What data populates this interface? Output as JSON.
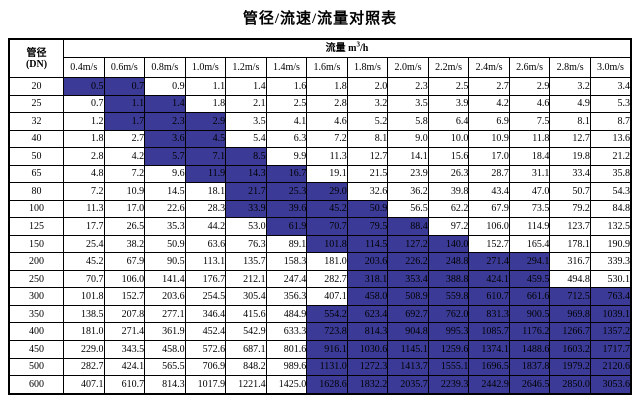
{
  "title": "管径/流速/流量对照表",
  "colors": {
    "highlight": "#3b3b97",
    "border": "#000000",
    "background": "#ffffff"
  },
  "table": {
    "corner_line1": "管径",
    "corner_line2": "(DN)",
    "flow_label": "流量 m",
    "flow_sup": "3",
    "flow_unit": "/h",
    "velocity_headers": [
      "0.4m/s",
      "0.6m/s",
      "0.8m/s",
      "1.0m/s",
      "1.2m/s",
      "1.4m/s",
      "1.6m/s",
      "1.8m/s",
      "2.0m/s",
      "2.2m/s",
      "2.4m/s",
      "2.6m/s",
      "2.8m/s",
      "3.0m/s"
    ],
    "rows": [
      {
        "dn": "20",
        "values": [
          "0.5",
          "0.7",
          "0.9",
          "1.1",
          "1.4",
          "1.6",
          "1.8",
          "2.0",
          "2.3",
          "2.5",
          "2.7",
          "2.9",
          "3.2",
          "3.4"
        ],
        "hl": [
          0,
          1
        ]
      },
      {
        "dn": "25",
        "values": [
          "0.7",
          "1.1",
          "1.4",
          "1.8",
          "2.1",
          "2.5",
          "2.8",
          "3.2",
          "3.5",
          "3.9",
          "4.2",
          "4.6",
          "4.9",
          "5.3"
        ],
        "hl": [
          1,
          2
        ]
      },
      {
        "dn": "32",
        "values": [
          "1.2",
          "1.7",
          "2.3",
          "2.9",
          "3.5",
          "4.1",
          "4.6",
          "5.2",
          "5.8",
          "6.4",
          "6.9",
          "7.5",
          "8.1",
          "8.7"
        ],
        "hl": [
          1,
          3
        ]
      },
      {
        "dn": "40",
        "values": [
          "1.8",
          "2.7",
          "3.6",
          "4.5",
          "5.4",
          "6.3",
          "7.2",
          "8.1",
          "9.0",
          "10.0",
          "10.9",
          "11.8",
          "12.7",
          "13.6"
        ],
        "hl": [
          2,
          3
        ]
      },
      {
        "dn": "50",
        "values": [
          "2.8",
          "4.2",
          "5.7",
          "7.1",
          "8.5",
          "9.9",
          "11.3",
          "12.7",
          "14.1",
          "15.6",
          "17.0",
          "18.4",
          "19.8",
          "21.2"
        ],
        "hl": [
          2,
          4
        ]
      },
      {
        "dn": "65",
        "values": [
          "4.8",
          "7.2",
          "9.6",
          "11.9",
          "14.3",
          "16.7",
          "19.1",
          "21.5",
          "23.9",
          "26.3",
          "28.7",
          "31.1",
          "33.4",
          "35.8"
        ],
        "hl": [
          3,
          5
        ]
      },
      {
        "dn": "80",
        "values": [
          "7.2",
          "10.9",
          "14.5",
          "18.1",
          "21.7",
          "25.3",
          "29.0",
          "32.6",
          "36.2",
          "39.8",
          "43.4",
          "47.0",
          "50.7",
          "54.3"
        ],
        "hl": [
          4,
          6
        ]
      },
      {
        "dn": "100",
        "values": [
          "11.3",
          "17.0",
          "22.6",
          "28.3",
          "33.9",
          "39.6",
          "45.2",
          "50.9",
          "56.5",
          "62.2",
          "67.9",
          "73.5",
          "79.2",
          "84.8"
        ],
        "hl": [
          4,
          7
        ]
      },
      {
        "dn": "125",
        "values": [
          "17.7",
          "26.5",
          "35.3",
          "44.2",
          "53.0",
          "61.9",
          "70.7",
          "79.5",
          "88.4",
          "97.2",
          "106.0",
          "114.9",
          "123.7",
          "132.5"
        ],
        "hl": [
          5,
          8
        ]
      },
      {
        "dn": "150",
        "values": [
          "25.4",
          "38.2",
          "50.9",
          "63.6",
          "76.3",
          "89.1",
          "101.8",
          "114.5",
          "127.2",
          "140.0",
          "152.7",
          "165.4",
          "178.1",
          "190.9"
        ],
        "hl": [
          6,
          9
        ]
      },
      {
        "dn": "200",
        "values": [
          "45.2",
          "67.9",
          "90.5",
          "113.1",
          "135.7",
          "158.3",
          "181.0",
          "203.6",
          "226.2",
          "248.8",
          "271.4",
          "294.1",
          "316.7",
          "339.3"
        ],
        "hl": [
          7,
          11
        ]
      },
      {
        "dn": "250",
        "values": [
          "70.7",
          "106.0",
          "141.4",
          "176.7",
          "212.1",
          "247.4",
          "282.7",
          "318.1",
          "353.4",
          "388.8",
          "424.1",
          "459.5",
          "494.8",
          "530.1"
        ],
        "hl": [
          7,
          11
        ]
      },
      {
        "dn": "300",
        "values": [
          "101.8",
          "152.7",
          "203.6",
          "254.5",
          "305.4",
          "356.3",
          "407.1",
          "458.0",
          "508.9",
          "559.8",
          "610.7",
          "661.6",
          "712.5",
          "763.4"
        ],
        "hl": [
          7,
          13
        ]
      },
      {
        "dn": "350",
        "values": [
          "138.5",
          "207.8",
          "277.1",
          "346.4",
          "415.6",
          "484.9",
          "554.2",
          "623.4",
          "692.7",
          "762.0",
          "831.3",
          "900.5",
          "969.8",
          "1039.1"
        ],
        "hl": [
          6,
          13
        ]
      },
      {
        "dn": "400",
        "values": [
          "181.0",
          "271.4",
          "361.9",
          "452.4",
          "542.9",
          "633.3",
          "723.8",
          "814.3",
          "904.8",
          "995.3",
          "1085.7",
          "1176.2",
          "1266.7",
          "1357.2"
        ],
        "hl": [
          6,
          13
        ]
      },
      {
        "dn": "450",
        "values": [
          "229.0",
          "343.5",
          "458.0",
          "572.6",
          "687.1",
          "801.6",
          "916.1",
          "1030.6",
          "1145.1",
          "1259.6",
          "1374.1",
          "1488.6",
          "1603.2",
          "1717.7"
        ],
        "hl": [
          6,
          13
        ]
      },
      {
        "dn": "500",
        "values": [
          "282.7",
          "424.1",
          "565.5",
          "706.9",
          "848.2",
          "989.6",
          "1131.0",
          "1272.3",
          "1413.7",
          "1555.1",
          "1696.5",
          "1837.8",
          "1979.2",
          "2120.6"
        ],
        "hl": [
          6,
          13
        ]
      },
      {
        "dn": "600",
        "values": [
          "407.1",
          "610.7",
          "814.3",
          "1017.9",
          "1221.4",
          "1425.0",
          "1628.6",
          "1832.2",
          "2035.7",
          "2239.3",
          "2442.9",
          "2646.5",
          "2850.0",
          "3053.6"
        ],
        "hl": [
          6,
          13
        ]
      }
    ]
  }
}
